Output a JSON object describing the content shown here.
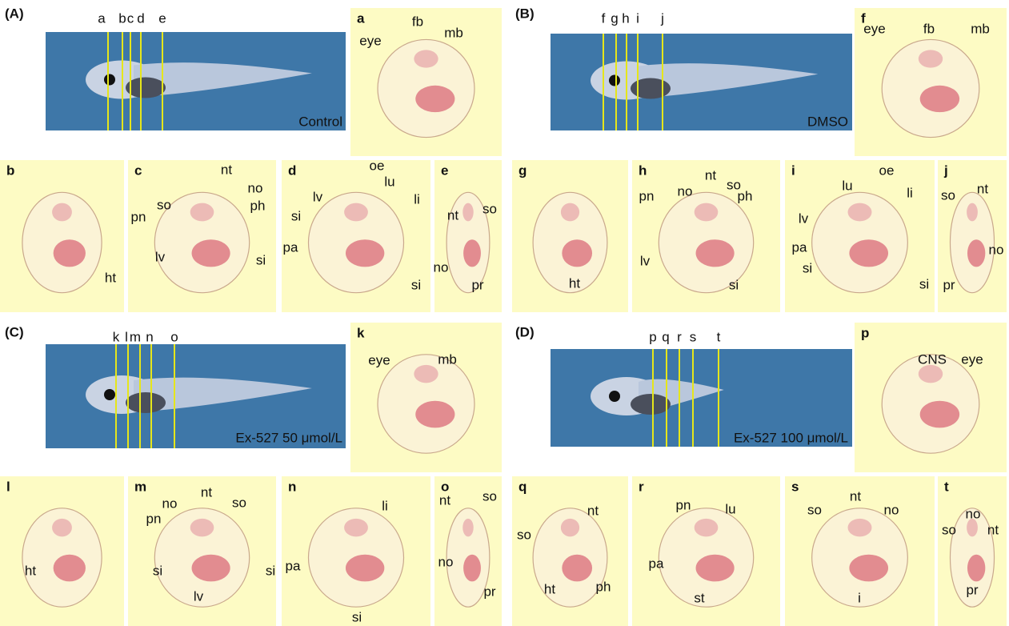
{
  "figure": {
    "panels": [
      {
        "label": "(A)",
        "caption": "Control",
        "markers": [
          "a",
          "b",
          "c",
          "d",
          "e"
        ]
      },
      {
        "label": "(B)",
        "caption": "DMSO",
        "markers": [
          "f",
          "g",
          "h",
          "i",
          "j"
        ]
      },
      {
        "label": "(C)",
        "caption": "Ex-527 50 μmol/L",
        "markers": [
          "k",
          "l",
          "m",
          "n",
          "o"
        ]
      },
      {
        "label": "(D)",
        "caption": "Ex-527 100 μmol/L",
        "markers": [
          "p",
          "q",
          "r",
          "s",
          "t"
        ]
      }
    ],
    "sections": [
      {
        "letter": "a",
        "labels": [
          "eye",
          "fb",
          "mb"
        ]
      },
      {
        "letter": "b",
        "labels": [
          "ht"
        ]
      },
      {
        "letter": "c",
        "labels": [
          "so",
          "nt",
          "pn",
          "no",
          "ph",
          "lv",
          "si"
        ]
      },
      {
        "letter": "d",
        "labels": [
          "oe",
          "lu",
          "lv",
          "li",
          "si",
          "pa",
          "si"
        ]
      },
      {
        "letter": "e",
        "labels": [
          "nt",
          "so",
          "no",
          "pr"
        ]
      },
      {
        "letter": "f",
        "labels": [
          "eye",
          "fb",
          "mb"
        ]
      },
      {
        "letter": "g",
        "labels": [
          "ht"
        ]
      },
      {
        "letter": "h",
        "labels": [
          "nt",
          "so",
          "no",
          "ph",
          "pn",
          "lv",
          "si"
        ]
      },
      {
        "letter": "i",
        "labels": [
          "oe",
          "lu",
          "li",
          "lv",
          "pa",
          "si",
          "si"
        ]
      },
      {
        "letter": "j",
        "labels": [
          "nt",
          "so",
          "no",
          "pr"
        ]
      },
      {
        "letter": "k",
        "labels": [
          "eye",
          "mb"
        ]
      },
      {
        "letter": "l",
        "labels": [
          "ht"
        ]
      },
      {
        "letter": "m",
        "labels": [
          "nt",
          "no",
          "so",
          "pn",
          "si",
          "si",
          "lv"
        ]
      },
      {
        "letter": "n",
        "labels": [
          "li",
          "pa",
          "si"
        ]
      },
      {
        "letter": "o",
        "labels": [
          "nt",
          "so",
          "no",
          "pr"
        ]
      },
      {
        "letter": "p",
        "labels": [
          "CNS",
          "eye"
        ]
      },
      {
        "letter": "q",
        "labels": [
          "nt",
          "so",
          "ht",
          "ph"
        ]
      },
      {
        "letter": "r",
        "labels": [
          "pn",
          "lu",
          "pa",
          "st"
        ]
      },
      {
        "letter": "s",
        "labels": [
          "so",
          "nt",
          "no",
          "i"
        ]
      },
      {
        "letter": "t",
        "labels": [
          "no",
          "nt",
          "so",
          "pr"
        ]
      }
    ]
  }
}
